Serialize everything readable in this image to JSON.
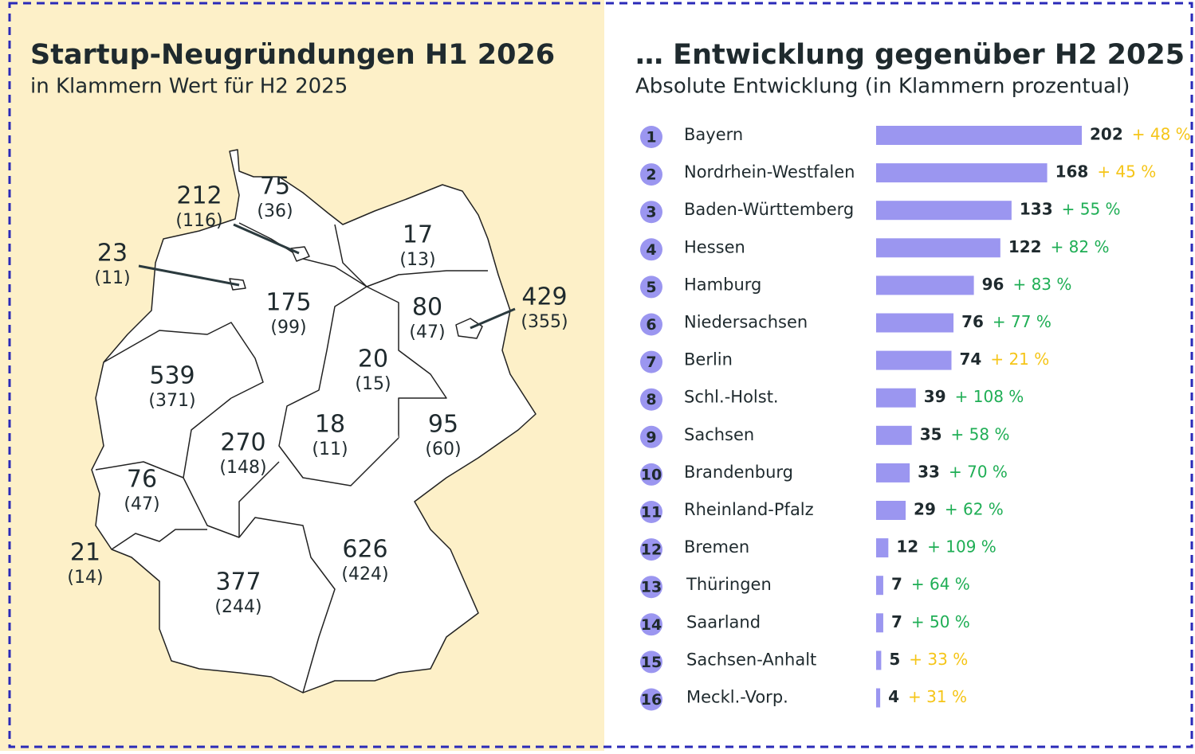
{
  "map": {
    "title": "Startup-Neugründungen H1 2026",
    "subtitle": "in Klammern Wert für H2 2025",
    "regions": [
      {
        "value": 75,
        "previous": "(36)"
      },
      {
        "value": 212,
        "previous": "(116)"
      },
      {
        "value": 23,
        "previous": "(11)"
      },
      {
        "value": 17,
        "previous": "(13)"
      },
      {
        "value": 175,
        "previous": "(99)"
      },
      {
        "value": 80,
        "previous": "(47)"
      },
      {
        "value": 429,
        "previous": "(355)"
      },
      {
        "value": 20,
        "previous": "(15)"
      },
      {
        "value": 539,
        "previous": "(371)"
      },
      {
        "value": 18,
        "previous": "(11)"
      },
      {
        "value": 95,
        "previous": "(60)"
      },
      {
        "value": 270,
        "previous": "(148)"
      },
      {
        "value": 76,
        "previous": "(47)"
      },
      {
        "value": 21,
        "previous": "(14)"
      },
      {
        "value": 377,
        "previous": "(244)"
      },
      {
        "value": 626,
        "previous": "(424)"
      }
    ]
  },
  "chart_data": {
    "type": "bar",
    "title": "… Entwicklung gegenüber H2 2025",
    "subtitle": "Absolute Entwicklung (in Klammern prozentual)",
    "color": "#9b96f0",
    "ranks": [
      1,
      2,
      3,
      4,
      5,
      6,
      7,
      8,
      9,
      10,
      11,
      12,
      13,
      14,
      15,
      16
    ],
    "categories": [
      "Bayern",
      "Nordrhein-Westfalen",
      "Baden-Württemberg",
      "Hessen",
      "Hamburg",
      "Niedersachsen",
      "Berlin",
      "Schl.-Holst.",
      "Sachsen",
      "Brandenburg",
      "Rheinland-Pfalz",
      "Bremen",
      "Thüringen",
      "Saarland",
      "Sachsen-Anhalt",
      "Meckl.-Vorp."
    ],
    "values": [
      202,
      168,
      133,
      122,
      96,
      76,
      74,
      39,
      35,
      33,
      29,
      12,
      7,
      7,
      5,
      4
    ],
    "change_labels": [
      "+ 48 %",
      "+ 45 %",
      "+ 55 %",
      "+ 82 %",
      "+ 83 %",
      "+ 77 %",
      "+ 21 %",
      "+ 108 %",
      "+ 58 %",
      "+ 70 %",
      "+ 62 %",
      "+ 109 %",
      "+ 64 %",
      "+ 50 %",
      "+ 33 %",
      "+ 31 %"
    ],
    "change_colors": [
      "#f5c518",
      "#f5c518",
      "#1fae55",
      "#1fae55",
      "#1fae55",
      "#1fae55",
      "#f5c518",
      "#1fae55",
      "#1fae55",
      "#1fae55",
      "#1fae55",
      "#1fae55",
      "#1fae55",
      "#1fae55",
      "#f5c518",
      "#f5c518"
    ]
  }
}
